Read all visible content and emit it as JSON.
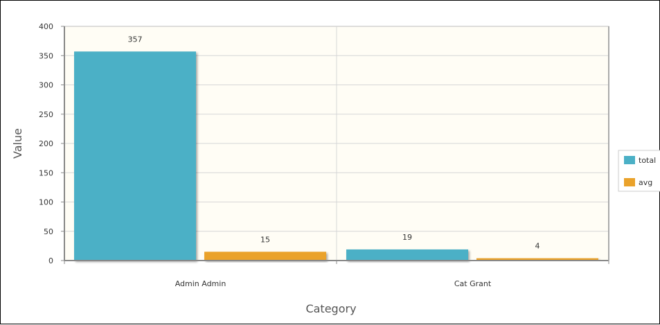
{
  "chart_data": {
    "type": "bar",
    "title": "",
    "xlabel": "Category",
    "ylabel": "Value",
    "categories": [
      "Admin Admin",
      "Cat Grant"
    ],
    "series": [
      {
        "name": "total",
        "values": [
          357,
          19
        ],
        "color": "#4bb0c6"
      },
      {
        "name": "avg",
        "values": [
          15,
          4
        ],
        "color": "#eaa22b"
      }
    ],
    "ylim": [
      0,
      400
    ],
    "yticks": [
      0,
      50,
      100,
      150,
      200,
      250,
      300,
      350,
      400
    ],
    "grid": true,
    "legend_position": "right",
    "plot_background": "#fffdf5"
  }
}
